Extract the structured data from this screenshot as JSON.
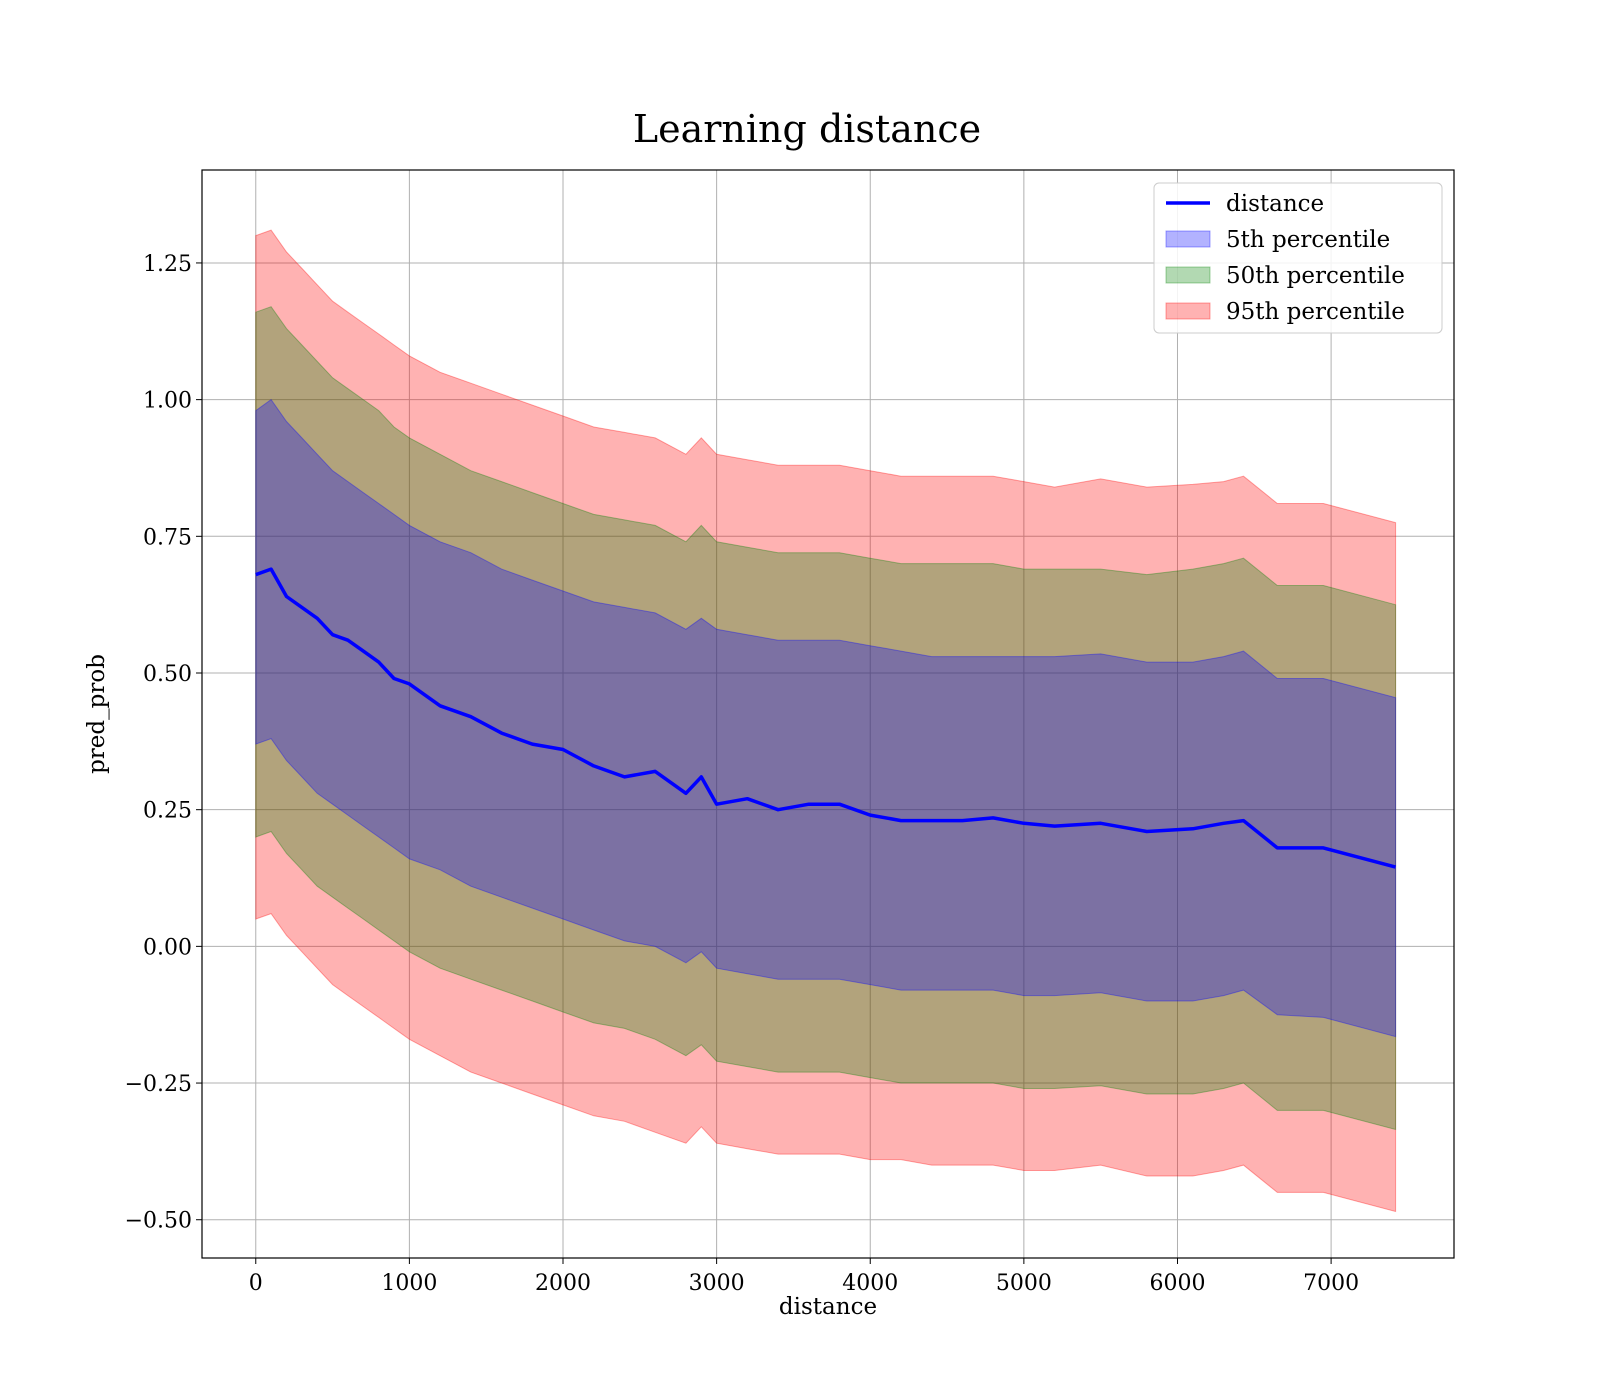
{
  "chart_data": {
    "type": "line",
    "title": "Learning distance",
    "xlabel": "distance",
    "ylabel": "pred_prob",
    "xlim": [
      -350,
      7800
    ],
    "ylim": [
      -0.57,
      1.42
    ],
    "x_ticks": [
      0,
      1000,
      2000,
      3000,
      4000,
      5000,
      6000,
      7000
    ],
    "x_tick_labels": [
      "0",
      "1000",
      "2000",
      "3000",
      "4000",
      "5000",
      "6000",
      "7000"
    ],
    "y_ticks": [
      -0.5,
      -0.25,
      0.0,
      0.25,
      0.5,
      0.75,
      1.0,
      1.25
    ],
    "y_tick_labels": [
      "−0.50",
      "−0.25",
      "0.00",
      "0.25",
      "0.50",
      "0.75",
      "1.00",
      "1.25"
    ],
    "grid": true,
    "legend_position": "top-right",
    "x": [
      0,
      100,
      200,
      300,
      400,
      500,
      600,
      700,
      800,
      900,
      1000,
      1200,
      1400,
      1600,
      1800,
      2000,
      2200,
      2400,
      2600,
      2800,
      2900,
      3000,
      3200,
      3400,
      3600,
      3800,
      4000,
      4200,
      4400,
      4600,
      4800,
      5000,
      5200,
      5500,
      5800,
      6100,
      6300,
      6430,
      6650,
      6950,
      7420
    ],
    "series": [
      {
        "name": "distance",
        "kind": "line",
        "color": "#0000ff",
        "values": [
          0.68,
          0.69,
          0.64,
          0.62,
          0.6,
          0.57,
          0.56,
          0.54,
          0.52,
          0.49,
          0.48,
          0.44,
          0.42,
          0.39,
          0.37,
          0.36,
          0.33,
          0.31,
          0.32,
          0.28,
          0.31,
          0.26,
          0.27,
          0.25,
          0.26,
          0.26,
          0.24,
          0.23,
          0.23,
          0.23,
          0.235,
          0.225,
          0.22,
          0.225,
          0.21,
          0.215,
          0.225,
          0.23,
          0.18,
          0.18,
          0.145
        ]
      },
      {
        "name": "5th percentile",
        "kind": "band",
        "color": "#0000ff",
        "upper": [
          0.98,
          1.0,
          0.96,
          0.93,
          0.9,
          0.87,
          0.85,
          0.83,
          0.81,
          0.79,
          0.77,
          0.74,
          0.72,
          0.69,
          0.67,
          0.65,
          0.63,
          0.62,
          0.61,
          0.58,
          0.6,
          0.58,
          0.57,
          0.56,
          0.56,
          0.56,
          0.55,
          0.54,
          0.53,
          0.53,
          0.53,
          0.53,
          0.53,
          0.535,
          0.52,
          0.52,
          0.53,
          0.54,
          0.49,
          0.49,
          0.455
        ],
        "lower": [
          0.37,
          0.38,
          0.34,
          0.31,
          0.28,
          0.26,
          0.24,
          0.22,
          0.2,
          0.18,
          0.16,
          0.14,
          0.11,
          0.09,
          0.07,
          0.05,
          0.03,
          0.01,
          0.0,
          -0.03,
          -0.01,
          -0.04,
          -0.05,
          -0.06,
          -0.06,
          -0.06,
          -0.07,
          -0.08,
          -0.08,
          -0.08,
          -0.08,
          -0.09,
          -0.09,
          -0.085,
          -0.1,
          -0.1,
          -0.09,
          -0.08,
          -0.125,
          -0.13,
          -0.165
        ]
      },
      {
        "name": "50th percentile",
        "kind": "band",
        "color": "#008000",
        "upper": [
          1.16,
          1.17,
          1.13,
          1.1,
          1.07,
          1.04,
          1.02,
          1.0,
          0.98,
          0.95,
          0.93,
          0.9,
          0.87,
          0.85,
          0.83,
          0.81,
          0.79,
          0.78,
          0.77,
          0.74,
          0.77,
          0.74,
          0.73,
          0.72,
          0.72,
          0.72,
          0.71,
          0.7,
          0.7,
          0.7,
          0.7,
          0.69,
          0.69,
          0.69,
          0.68,
          0.69,
          0.7,
          0.71,
          0.66,
          0.66,
          0.625
        ],
        "lower": [
          0.2,
          0.21,
          0.17,
          0.14,
          0.11,
          0.09,
          0.07,
          0.05,
          0.03,
          0.01,
          -0.01,
          -0.04,
          -0.06,
          -0.08,
          -0.1,
          -0.12,
          -0.14,
          -0.15,
          -0.17,
          -0.2,
          -0.18,
          -0.21,
          -0.22,
          -0.23,
          -0.23,
          -0.23,
          -0.24,
          -0.25,
          -0.25,
          -0.25,
          -0.25,
          -0.26,
          -0.26,
          -0.255,
          -0.27,
          -0.27,
          -0.26,
          -0.25,
          -0.3,
          -0.3,
          -0.335
        ]
      },
      {
        "name": "95th percentile",
        "kind": "band",
        "color": "#ff0000",
        "upper": [
          1.3,
          1.31,
          1.27,
          1.24,
          1.21,
          1.18,
          1.16,
          1.14,
          1.12,
          1.1,
          1.08,
          1.05,
          1.03,
          1.01,
          0.99,
          0.97,
          0.95,
          0.94,
          0.93,
          0.9,
          0.93,
          0.9,
          0.89,
          0.88,
          0.88,
          0.88,
          0.87,
          0.86,
          0.86,
          0.86,
          0.86,
          0.85,
          0.84,
          0.855,
          0.84,
          0.845,
          0.85,
          0.86,
          0.81,
          0.81,
          0.775
        ],
        "lower": [
          0.05,
          0.06,
          0.02,
          -0.01,
          -0.04,
          -0.07,
          -0.09,
          -0.11,
          -0.13,
          -0.15,
          -0.17,
          -0.2,
          -0.23,
          -0.25,
          -0.27,
          -0.29,
          -0.31,
          -0.32,
          -0.34,
          -0.36,
          -0.33,
          -0.36,
          -0.37,
          -0.38,
          -0.38,
          -0.38,
          -0.39,
          -0.39,
          -0.4,
          -0.4,
          -0.4,
          -0.41,
          -0.41,
          -0.4,
          -0.42,
          -0.42,
          -0.41,
          -0.4,
          -0.45,
          -0.45,
          -0.485
        ]
      }
    ]
  }
}
